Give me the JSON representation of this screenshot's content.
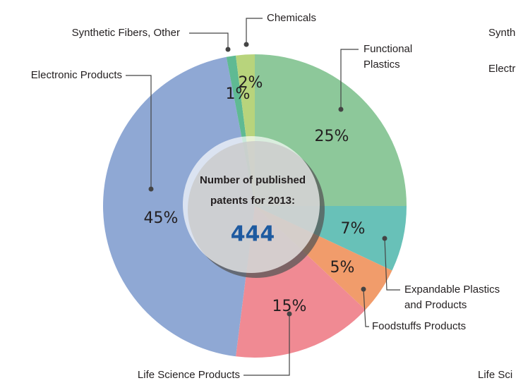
{
  "chart_data": {
    "type": "pie",
    "categories": [
      [
        "Functional",
        "Plastics"
      ],
      [
        "Expandable Plastics",
        "and Products"
      ],
      [
        "Foodstuffs Products"
      ],
      [
        "Life Science Products"
      ],
      [
        "Electronic Products"
      ],
      [
        "Synthetic Fibers, Other"
      ],
      [
        "Chemicals"
      ]
    ],
    "values": [
      25,
      7,
      5,
      15,
      45,
      1,
      2
    ],
    "value_labels": [
      "25%",
      "7%",
      "5%",
      "15%",
      "45%",
      "1%",
      "2%"
    ],
    "colors": [
      "#8dc89a",
      "#68c1b8",
      "#f19c6b",
      "#f08a93",
      "#8fa8d4",
      "#5fba93",
      "#b8d47c"
    ],
    "center_text": [
      "Number of published",
      "patents for 2013:"
    ],
    "center_value": 444,
    "clipped_labels": [
      "Synth",
      "Electr",
      "Life Sci"
    ]
  }
}
